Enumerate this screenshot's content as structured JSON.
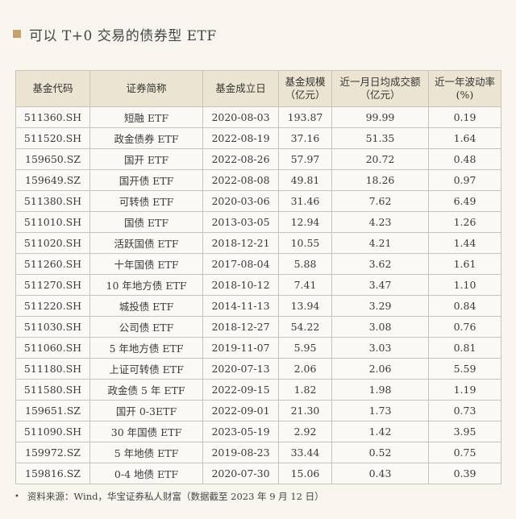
{
  "title": "可以 T+0 交易的债券型 ETF",
  "table": {
    "headers": [
      "基金代码",
      "证券简称",
      "基金成立日",
      "基金规模\n（亿元）",
      "近一月日均成交额\n（亿元）",
      "近一年波动率\n(%)"
    ],
    "rows": [
      [
        "511360.SH",
        "短融 ETF",
        "2020-08-03",
        "193.87",
        "99.99",
        "0.19"
      ],
      [
        "511520.SH",
        "政金债券 ETF",
        "2022-08-19",
        "37.16",
        "51.35",
        "1.64"
      ],
      [
        "159650.SZ",
        "国开 ETF",
        "2022-08-26",
        "57.97",
        "20.72",
        "0.48"
      ],
      [
        "159649.SZ",
        "国开债 ETF",
        "2022-08-08",
        "49.81",
        "18.26",
        "0.97"
      ],
      [
        "511380.SH",
        "可转债 ETF",
        "2020-03-06",
        "31.46",
        "7.62",
        "6.49"
      ],
      [
        "511010.SH",
        "国债 ETF",
        "2013-03-05",
        "12.94",
        "4.23",
        "1.26"
      ],
      [
        "511020.SH",
        "活跃国债 ETF",
        "2018-12-21",
        "10.55",
        "4.21",
        "1.44"
      ],
      [
        "511260.SH",
        "十年国债 ETF",
        "2017-08-04",
        "5.88",
        "3.62",
        "1.61"
      ],
      [
        "511270.SH",
        "10 年地方债 ETF",
        "2018-10-12",
        "7.41",
        "3.47",
        "1.10"
      ],
      [
        "511220.SH",
        "城投债 ETF",
        "2014-11-13",
        "13.94",
        "3.29",
        "0.84"
      ],
      [
        "511030.SH",
        "公司债 ETF",
        "2018-12-27",
        "54.22",
        "3.08",
        "0.76"
      ],
      [
        "511060.SH",
        "5 年地方债 ETF",
        "2019-11-07",
        "5.95",
        "3.03",
        "0.81"
      ],
      [
        "511180.SH",
        "上证可转债 ETF",
        "2020-07-13",
        "2.06",
        "2.06",
        "5.59"
      ],
      [
        "511580.SH",
        "政金债 5 年 ETF",
        "2022-09-15",
        "1.82",
        "1.98",
        "1.19"
      ],
      [
        "159651.SZ",
        "国开 0-3ETF",
        "2022-09-01",
        "21.30",
        "1.73",
        "0.73"
      ],
      [
        "511090.SH",
        "30 年国债 ETF",
        "2023-05-19",
        "2.92",
        "1.42",
        "3.95"
      ],
      [
        "159972.SZ",
        "5 年地债 ETF",
        "2019-08-23",
        "33.44",
        "0.52",
        "0.75"
      ],
      [
        "159816.SZ",
        "0-4 地债 ETF",
        "2020-07-30",
        "15.06",
        "0.43",
        "0.39"
      ]
    ]
  },
  "footer": {
    "bullet": "•",
    "text": "资料来源：Wind，华宝证券私人财富（数据截至 2023 年 9 月 12 日）"
  }
}
